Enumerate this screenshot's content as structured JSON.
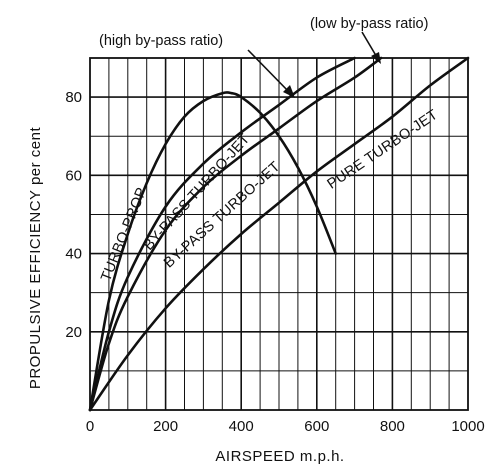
{
  "chart_data": {
    "type": "line",
    "title": "",
    "xlabel": "AIRSPEED m.p.h.",
    "ylabel": "PROPULSIVE EFFICIENCY  per cent",
    "xlim": [
      0,
      1000
    ],
    "ylim": [
      0,
      90
    ],
    "x_ticks": [
      "0",
      "200",
      "400",
      "600",
      "800",
      "1000"
    ],
    "y_ticks": [
      "20",
      "40",
      "60",
      "80"
    ],
    "grid": true,
    "series": [
      {
        "name": "TURBO-PROP",
        "x": [
          0,
          50,
          100,
          150,
          200,
          250,
          300,
          350,
          375,
          400,
          450,
          500,
          550,
          600,
          650
        ],
        "y": [
          0,
          28,
          45,
          58,
          68,
          75,
          79,
          81,
          81,
          80,
          76,
          70,
          62,
          52,
          40
        ]
      },
      {
        "name": "BY-PASS TURBO-JET",
        "x": [
          0,
          50,
          100,
          200,
          300,
          400,
          500,
          600,
          700
        ],
        "y": [
          0,
          20,
          34,
          52,
          63,
          71,
          78,
          85,
          90
        ]
      },
      {
        "name": "BY-PASS TURBO-JET",
        "x": [
          0,
          50,
          100,
          200,
          300,
          400,
          500,
          600,
          700,
          770
        ],
        "y": [
          0,
          17,
          29,
          46,
          57,
          65,
          72,
          79,
          85,
          90
        ]
      },
      {
        "name": "PURE TURBO-JET",
        "x": [
          0,
          100,
          200,
          300,
          400,
          500,
          600,
          700,
          800,
          900,
          1000
        ],
        "y": [
          0,
          14,
          26,
          36,
          45,
          53,
          61,
          68,
          75,
          83,
          90
        ]
      }
    ],
    "annotations": [
      "(high by-pass ratio)",
      "(low by-pass ratio)"
    ]
  }
}
